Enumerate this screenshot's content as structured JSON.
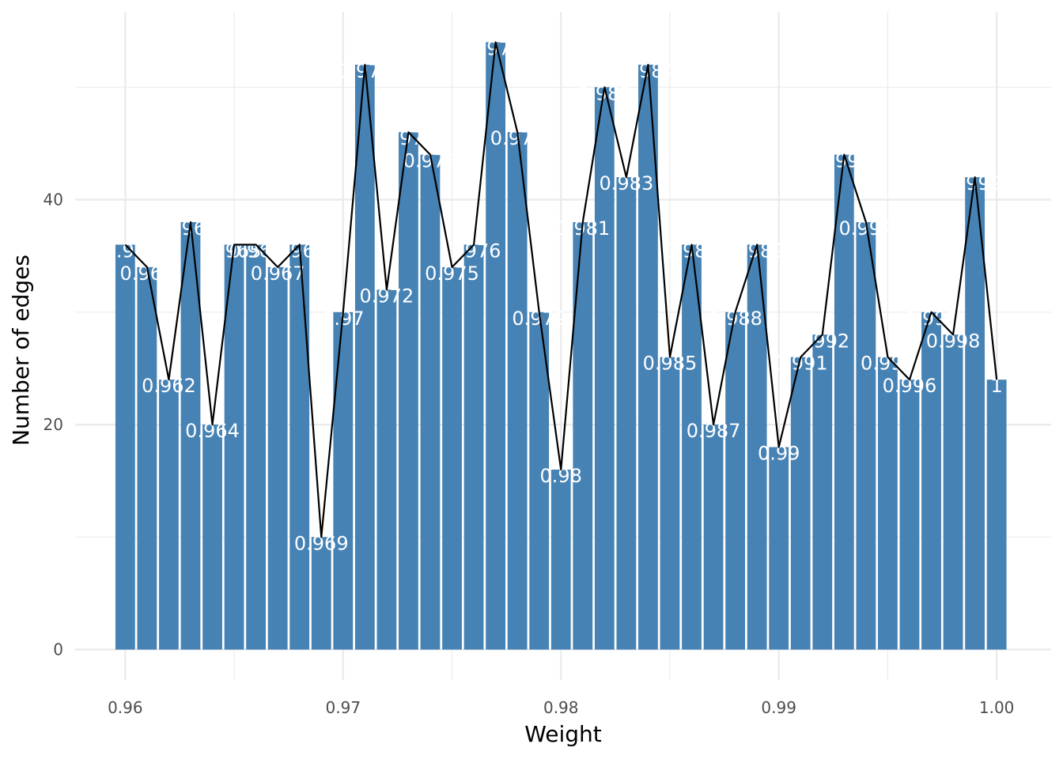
{
  "chart_data": {
    "type": "bar",
    "xlabel": "Weight",
    "ylabel": "Number of edges",
    "x": [
      0.96,
      0.961,
      0.962,
      0.963,
      0.964,
      0.965,
      0.966,
      0.967,
      0.968,
      0.969,
      0.97,
      0.971,
      0.972,
      0.973,
      0.974,
      0.975,
      0.976,
      0.977,
      0.978,
      0.979,
      0.98,
      0.981,
      0.982,
      0.983,
      0.984,
      0.985,
      0.986,
      0.987,
      0.988,
      0.989,
      0.99,
      0.991,
      0.992,
      0.993,
      0.994,
      0.995,
      0.996,
      0.997,
      0.998,
      0.999,
      1
    ],
    "values": [
      36,
      34,
      24,
      38,
      20,
      36,
      36,
      34,
      36,
      10,
      30,
      52,
      32,
      46,
      44,
      34,
      36,
      54,
      46,
      30,
      16,
      38,
      50,
      42,
      52,
      26,
      36,
      20,
      30,
      36,
      18,
      26,
      28,
      44,
      38,
      26,
      24,
      30,
      28,
      42,
      24
    ],
    "bar_labels": [
      "0.96",
      "0.961",
      "0.962",
      "0.963",
      "0.964",
      "0.965",
      "0.966",
      "0.967",
      "0.968",
      "0.969",
      "0.97",
      "0.971",
      "0.972",
      "0.973",
      "0.974",
      "0.975",
      "0.976",
      "0.977",
      "0.978",
      "0.979",
      "0.98",
      "0.981",
      "0.982",
      "0.983",
      "0.984",
      "0.985",
      "0.986",
      "0.987",
      "0.988",
      "0.989",
      "0.99",
      "0.991",
      "0.992",
      "0.993",
      "0.994",
      "0.995",
      "0.996",
      "0.997",
      "0.998",
      "0.999",
      "1"
    ],
    "xlim": [
      0.9577,
      1.0025
    ],
    "ylim": [
      -2.7,
      56.7
    ],
    "x_ticks": [
      0.96,
      0.97,
      0.98,
      0.99,
      1.0
    ],
    "x_tick_labels": [
      "0.96",
      "0.97",
      "0.98",
      "0.99",
      "1.00"
    ],
    "y_ticks": [
      0,
      20,
      40
    ],
    "y_tick_labels": [
      "0",
      "20",
      "40"
    ],
    "line_overlay": true,
    "grid": true,
    "legend": "none",
    "colors": {
      "bar": "#4682b4",
      "line": "#000000",
      "bar_label": "#ffffff",
      "grid": "#ebebeb",
      "tick_text": "#4d4d4d"
    }
  }
}
